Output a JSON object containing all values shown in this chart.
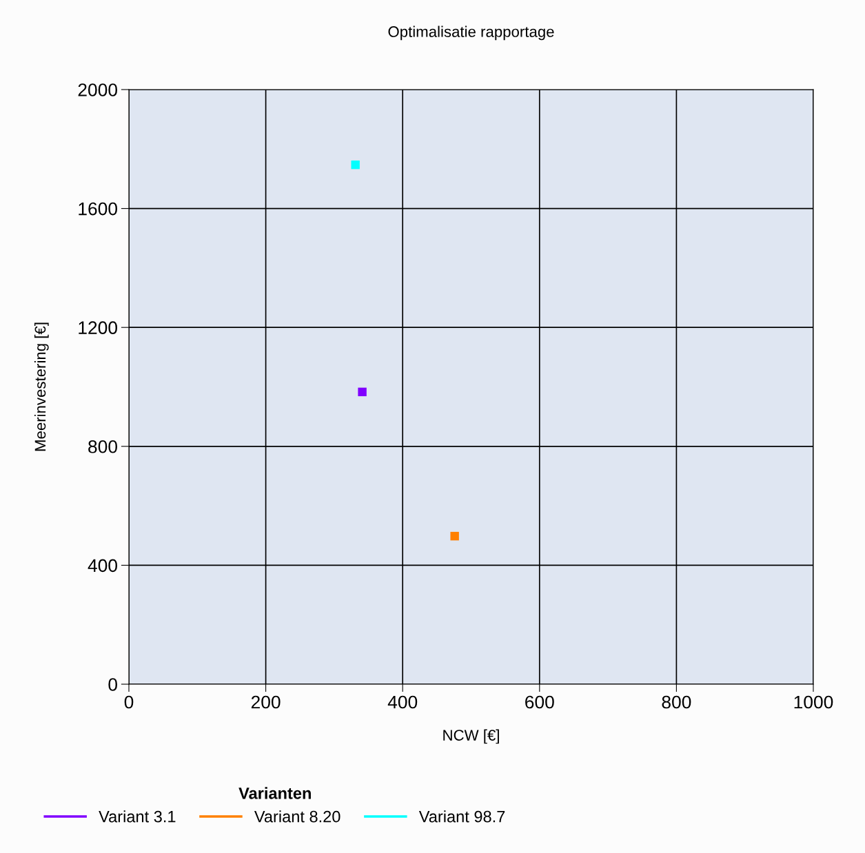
{
  "chart_data": {
    "type": "scatter",
    "title": "Optimalisatie rapportage",
    "xlabel": "NCW [€]",
    "ylabel": "Meerinvestering [€]",
    "legend_title": "Varianten",
    "xlim": [
      0,
      1000
    ],
    "xticks": [
      0,
      200,
      400,
      600,
      800,
      1000
    ],
    "ylim": [
      0,
      2000
    ],
    "yticks": [
      0,
      400,
      800,
      1200,
      1600,
      2000
    ],
    "grid": true,
    "legend": "bottom left",
    "marker": "square",
    "series": [
      {
        "name": "Variant 3.1",
        "color": "#8000ff",
        "x": [
          341
        ],
        "values": [
          983
        ]
      },
      {
        "name": "Variant 8.20",
        "color": "#ff8000",
        "x": [
          476
        ],
        "values": [
          498
        ]
      },
      {
        "name": "Variant 98.7",
        "color": "#00ffff",
        "x": [
          331
        ],
        "values": [
          1747
        ]
      }
    ]
  }
}
